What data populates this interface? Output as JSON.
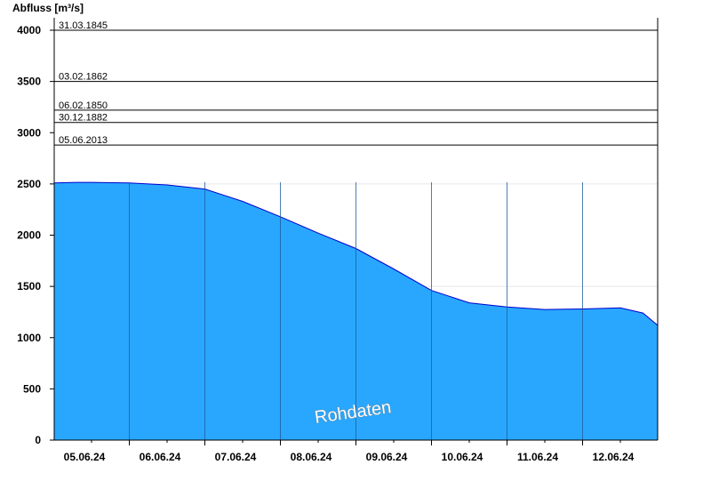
{
  "chart_data": {
    "type": "area",
    "title": "",
    "ylabel": "Abfluss [m³/s]",
    "xlabel": "",
    "ylim": [
      0,
      4000
    ],
    "yticks": [
      0,
      500,
      1000,
      1500,
      2000,
      2500,
      3000,
      3500,
      4000
    ],
    "y_gridlines": [
      1500,
      2500
    ],
    "x_ticks": [
      "05.06.24",
      "06.06.24",
      "07.06.24",
      "08.06.24",
      "09.06.24",
      "10.06.24",
      "11.06.24",
      "12.06.24"
    ],
    "x_unit": "days since 05.06.24 00:00 (axis spans roughly 4.6 to 12.6.24)",
    "xlim": [
      -0.5,
      7.5
    ],
    "series": [
      {
        "name": "",
        "color": "#29a7fe",
        "line_color": "#0000cc",
        "points": [
          [
            -0.5,
            2510
          ],
          [
            -0.2,
            2515
          ],
          [
            0.0,
            2515
          ],
          [
            0.5,
            2510
          ],
          [
            1.0,
            2490
          ],
          [
            1.5,
            2450
          ],
          [
            2.0,
            2330
          ],
          [
            2.5,
            2180
          ],
          [
            3.0,
            2020
          ],
          [
            3.5,
            1870
          ],
          [
            4.0,
            1670
          ],
          [
            4.5,
            1460
          ],
          [
            5.0,
            1340
          ],
          [
            5.5,
            1300
          ],
          [
            6.0,
            1275
          ],
          [
            6.5,
            1280
          ],
          [
            7.0,
            1290
          ],
          [
            7.3,
            1240
          ],
          [
            7.5,
            1120
          ]
        ]
      }
    ],
    "reference_lines": [
      {
        "label": "31.03.1845",
        "value": 4000
      },
      {
        "label": "03.02.1862",
        "value": 3500
      },
      {
        "label": "06.02.1850",
        "value": 3220
      },
      {
        "label": "30.12.1882",
        "value": 3100
      },
      {
        "label": "05.06.2013",
        "value": 2880
      }
    ],
    "watermark": "Rohdaten"
  }
}
